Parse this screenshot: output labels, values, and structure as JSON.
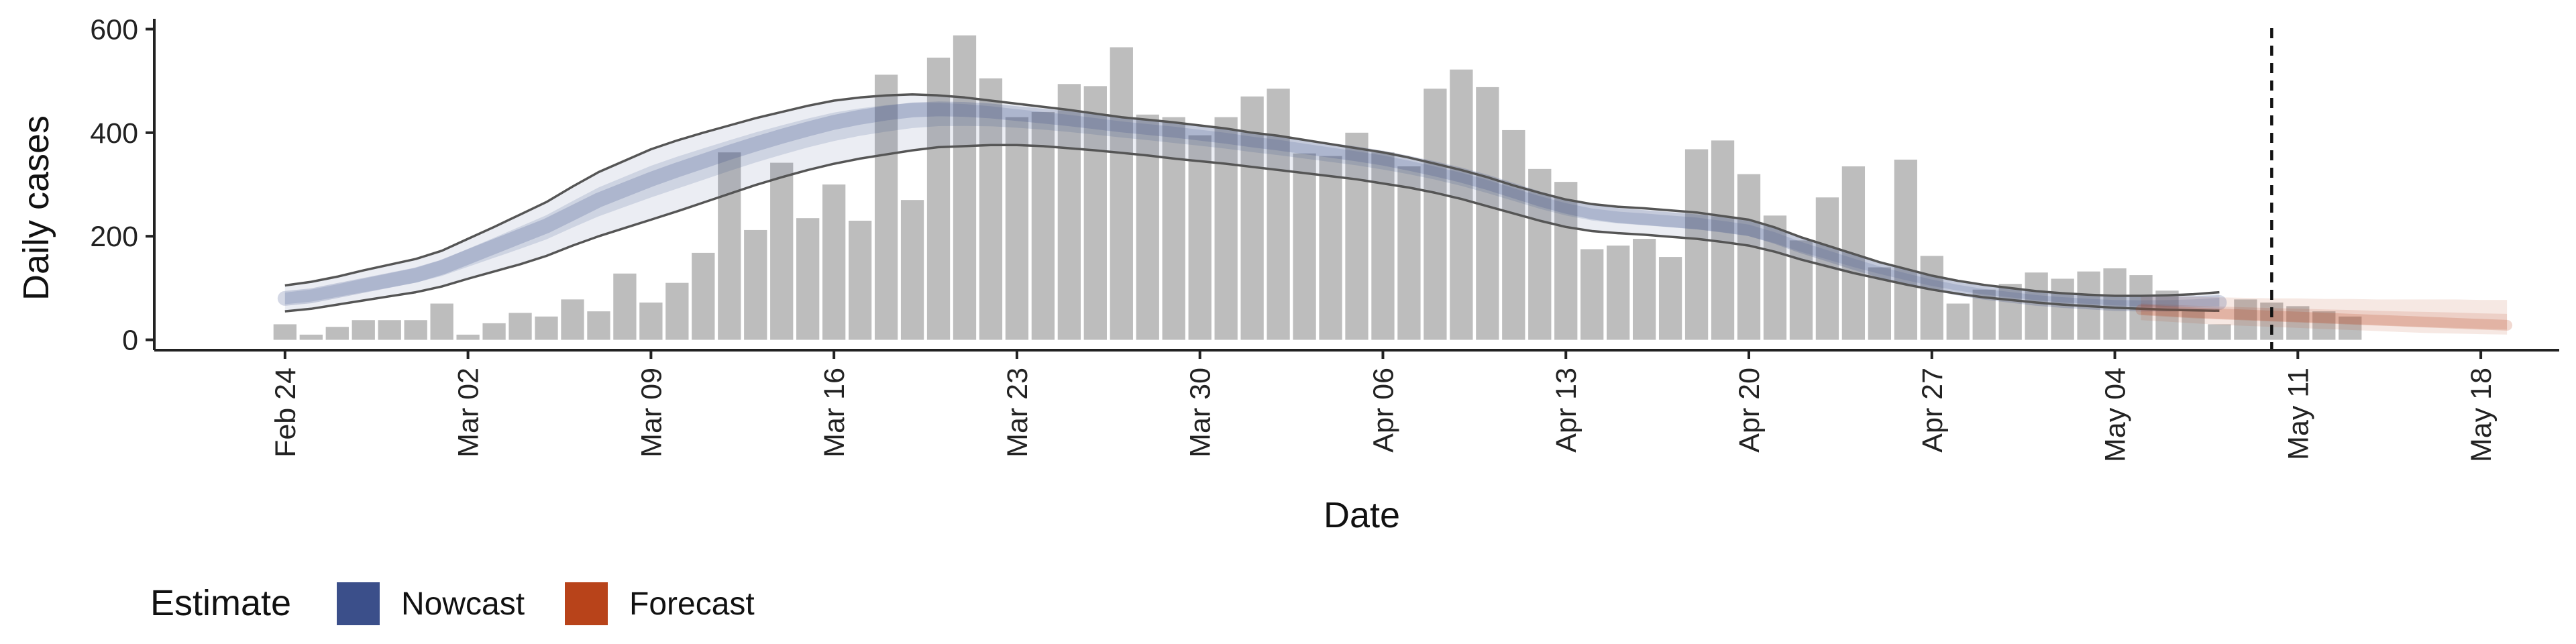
{
  "chart_data": {
    "type": "bar",
    "xlabel": "Date",
    "ylabel": "Daily cases",
    "ylim": [
      -20,
      620
    ],
    "yticks": [
      0,
      200,
      400,
      600
    ],
    "xlim": [
      "2020-02-19",
      "2020-05-21"
    ],
    "xticks": [
      "2020-02-24",
      "2020-03-02",
      "2020-03-09",
      "2020-03-16",
      "2020-03-23",
      "2020-03-30",
      "2020-04-06",
      "2020-04-13",
      "2020-04-20",
      "2020-04-27",
      "2020-05-04",
      "2020-05-11",
      "2020-05-18"
    ],
    "xtick_labels": [
      "Feb 24",
      "Mar 02",
      "Mar 09",
      "Mar 16",
      "Mar 23",
      "Mar 30",
      "Apr 06",
      "Apr 13",
      "Apr 20",
      "Apr 27",
      "May 04",
      "May 11",
      "May 18"
    ],
    "grid": false,
    "reference_line_date": "2020-05-10",
    "colors": {
      "bars": "#bdbdbd",
      "nowcast": "#3b4f8a",
      "forecast": "#b8431a",
      "axis": "#222222",
      "ref_line": "#111111"
    },
    "observed": {
      "start_date": "2020-02-24",
      "values": [
        30,
        10,
        25,
        38,
        38,
        38,
        70,
        10,
        32,
        52,
        45,
        78,
        55,
        128,
        72,
        110,
        168,
        362,
        212,
        342,
        235,
        300,
        230,
        512,
        270,
        545,
        588,
        505,
        430,
        440,
        494,
        490,
        565,
        435,
        430,
        395,
        430,
        470,
        485,
        360,
        355,
        400,
        362,
        335,
        485,
        522,
        488,
        405,
        330,
        305,
        175,
        182,
        195,
        160,
        368,
        385,
        320,
        240,
        192,
        275,
        335,
        140,
        348,
        162,
        70,
        97,
        108,
        130,
        118,
        132,
        138,
        125,
        95,
        55,
        30,
        78,
        72,
        65,
        55,
        45
      ]
    },
    "series": [
      {
        "name": "Nowcast",
        "start_date": "2020-02-24",
        "median": [
          80,
          85,
          95,
          105,
          115,
          125,
          140,
          160,
          180,
          200,
          220,
          245,
          270,
          290,
          310,
          328,
          345,
          362,
          378,
          393,
          407,
          420,
          430,
          438,
          444,
          446,
          445,
          442,
          437,
          432,
          427,
          421,
          415,
          410,
          405,
          399,
          393,
          386,
          380,
          373,
          366,
          359,
          351,
          341,
          330,
          318,
          304,
          288,
          272,
          258,
          247,
          240,
          236,
          232,
          228,
          222,
          215,
          200,
          182,
          166,
          150,
          135,
          122,
          110,
          100,
          92,
          86,
          80,
          76,
          73,
          70,
          69,
          69,
          70,
          72
        ],
        "lower": [
          55,
          60,
          68,
          76,
          84,
          92,
          103,
          118,
          132,
          146,
          162,
          182,
          200,
          216,
          232,
          248,
          265,
          282,
          299,
          314,
          328,
          340,
          350,
          358,
          366,
          372,
          374,
          376,
          376,
          374,
          370,
          366,
          361,
          356,
          350,
          345,
          340,
          334,
          328,
          322,
          316,
          310,
          302,
          294,
          284,
          272,
          258,
          244,
          230,
          218,
          210,
          206,
          203,
          199,
          195,
          189,
          182,
          170,
          155,
          142,
          129,
          118,
          107,
          97,
          89,
          82,
          77,
          72,
          68,
          65,
          62,
          60,
          58,
          57,
          56
        ],
        "upper": [
          105,
          112,
          122,
          134,
          145,
          156,
          172,
          195,
          218,
          242,
          266,
          296,
          324,
          346,
          368,
          385,
          400,
          414,
          428,
          440,
          452,
          462,
          468,
          472,
          474,
          472,
          468,
          462,
          456,
          450,
          444,
          437,
          430,
          425,
          420,
          414,
          408,
          400,
          394,
          386,
          378,
          370,
          362,
          352,
          340,
          328,
          314,
          298,
          284,
          271,
          262,
          257,
          254,
          250,
          246,
          239,
          232,
          217,
          198,
          182,
          166,
          150,
          137,
          124,
          114,
          106,
          100,
          94,
          90,
          87,
          85,
          85,
          86,
          88,
          92
        ]
      },
      {
        "name": "Forecast",
        "start_date": "2020-05-05",
        "median": [
          58,
          55,
          52,
          50,
          48,
          46,
          44,
          42,
          40,
          38,
          36,
          34,
          32,
          30,
          28
        ],
        "lower": [
          38,
          35,
          32,
          29,
          27,
          25,
          23,
          21,
          19,
          17,
          15,
          13,
          12,
          11,
          10
        ],
        "upper": [
          85,
          84,
          83,
          82,
          81,
          80,
          80,
          79,
          79,
          78,
          78,
          78,
          78,
          77,
          77
        ]
      }
    ],
    "legend": {
      "title": "Estimate",
      "placement": "bottom-left",
      "items": [
        {
          "label": "Nowcast",
          "color": "#3b4f8a"
        },
        {
          "label": "Forecast",
          "color": "#b8431a"
        }
      ]
    }
  }
}
